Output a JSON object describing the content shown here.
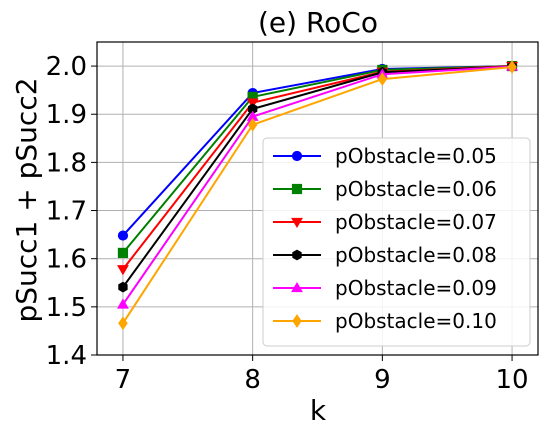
{
  "chart_data": {
    "type": "line",
    "title": "(e) RoCo",
    "xlabel": "k",
    "ylabel": "pSucc1 + pSucc2",
    "x": [
      7,
      8,
      9,
      10
    ],
    "xlim": [
      6.8,
      10.2
    ],
    "ylim": [
      1.4,
      2.05
    ],
    "xticks": [
      7,
      8,
      9,
      10
    ],
    "yticks": [
      1.4,
      1.5,
      1.6,
      1.7,
      1.8,
      1.9,
      2.0
    ],
    "ytick_labels": [
      "1.4",
      "1.5",
      "1.6",
      "1.7",
      "1.8",
      "1.9",
      "2.0"
    ],
    "grid": true,
    "legend_position": "lower-right",
    "series": [
      {
        "name": "pObstacle=0.05",
        "color": "#0000ff",
        "marker": "circle",
        "values": [
          1.648,
          1.944,
          1.994,
          2.0
        ]
      },
      {
        "name": "pObstacle=0.06",
        "color": "#008000",
        "marker": "square",
        "values": [
          1.612,
          1.936,
          1.992,
          2.0
        ]
      },
      {
        "name": "pObstacle=0.07",
        "color": "#ff0000",
        "marker": "triangle-down",
        "values": [
          1.578,
          1.924,
          1.988,
          2.0
        ]
      },
      {
        "name": "pObstacle=0.08",
        "color": "#000000",
        "marker": "hexagon",
        "values": [
          1.541,
          1.911,
          1.987,
          1.999
        ]
      },
      {
        "name": "pObstacle=0.09",
        "color": "#ff00ff",
        "marker": "triangle-up",
        "values": [
          1.505,
          1.895,
          1.983,
          1.999
        ]
      },
      {
        "name": "pObstacle=0.10",
        "color": "#ffa500",
        "marker": "diamond",
        "values": [
          1.466,
          1.878,
          1.973,
          1.998
        ]
      }
    ]
  }
}
